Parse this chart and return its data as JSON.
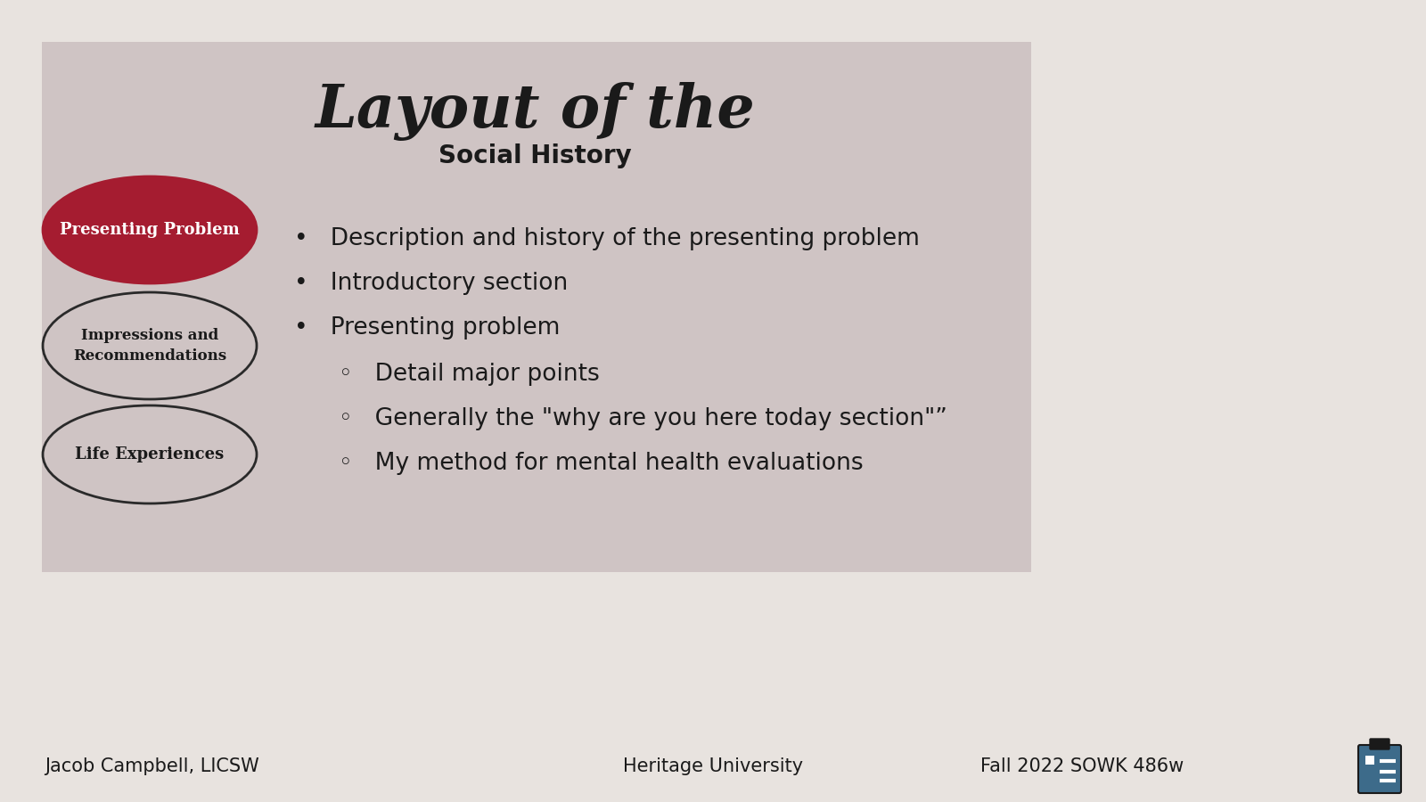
{
  "bg_outer": "#e8e3df",
  "bg_slide": "#cfc4c4",
  "title_main": "Layout of the",
  "title_sub": "Social History",
  "title_main_size": 48,
  "title_sub_size": 20,
  "title_color": "#1a1a1a",
  "ellipse1_label": "Presenting Problem",
  "ellipse2_label": "Impressions and\nRecommendations",
  "ellipse3_label": "Life Experiences",
  "ellipse1_facecolor": "#a51c30",
  "ellipse1_edgecolor": "#a51c30",
  "ellipse2_facecolor": "#cfc4c4",
  "ellipse2_edgecolor": "#2a2a2a",
  "ellipse3_facecolor": "#cfc4c4",
  "ellipse3_edgecolor": "#2a2a2a",
  "ellipse_label_color1": "#ffffff",
  "ellipse_label_color2": "#1a1a1a",
  "bullet_items": [
    "Description and history of the presenting problem",
    "Introductory section",
    "Presenting problem"
  ],
  "sub_bullet_items": [
    "Detail major points",
    "Generally the \"why are you here today section\"”",
    "My method for mental health evaluations"
  ],
  "bullet_fontsize": 19,
  "sub_bullet_fontsize": 19,
  "footer_left": "Jacob Campbell, LICSW",
  "footer_center": "Heritage University",
  "footer_right": "Fall 2022 SOWK 486w",
  "footer_fontsize": 15,
  "footer_color": "#1a1a1a",
  "clip_body_color": "#3d6b8a",
  "clip_edge_color": "#1a1a1a"
}
